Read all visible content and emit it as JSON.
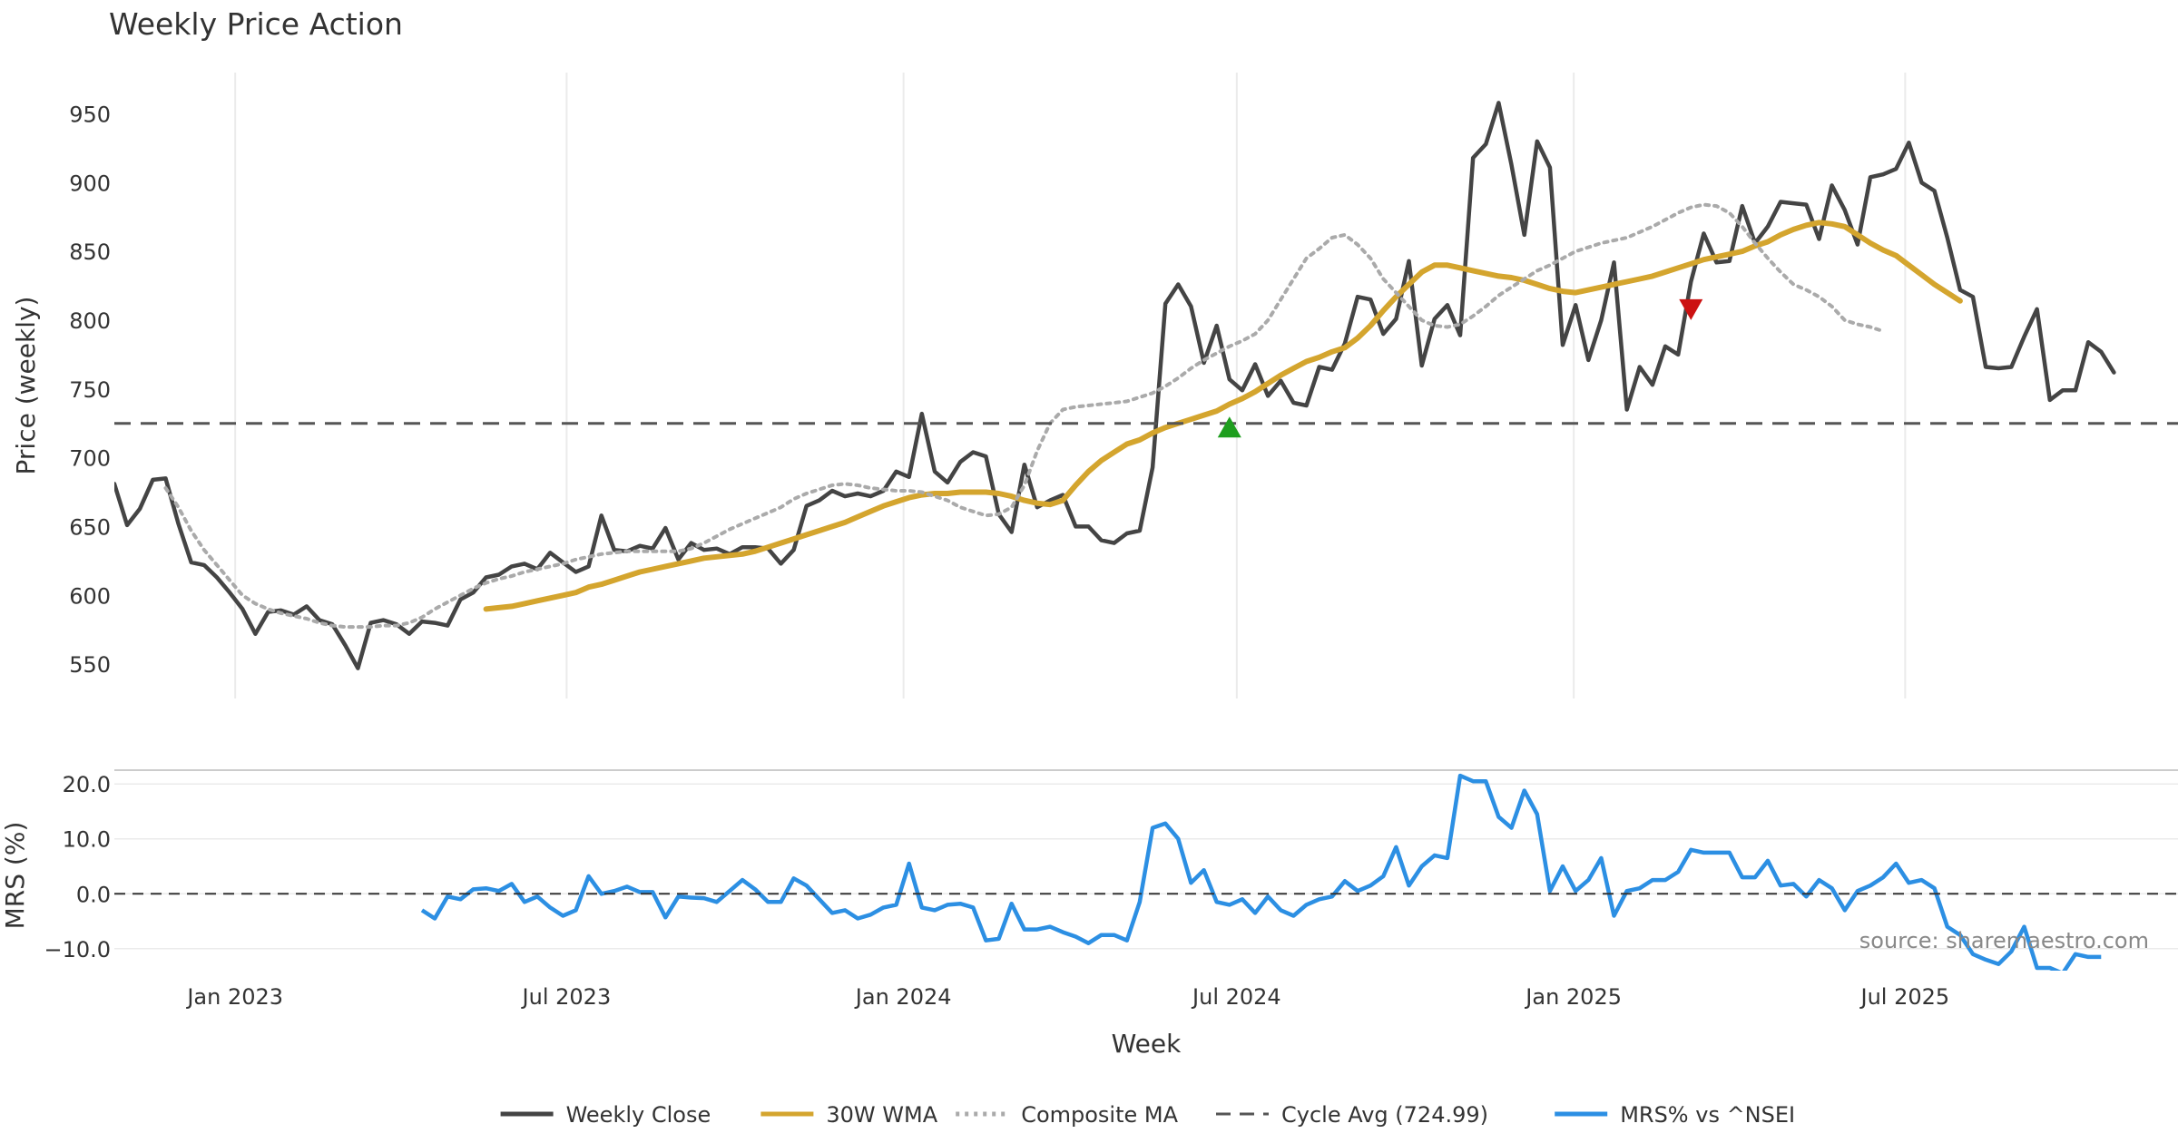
{
  "colors": {
    "close": "#444444",
    "wma": "#D4A52E",
    "composite": "#AAAAAA",
    "cycle": "#555555",
    "mrs": "#2C8FE3",
    "buy": "#1E9E1E",
    "sell": "#CC1111",
    "grid": "#EBEBEB"
  },
  "chart_data": [
    {
      "type": "line",
      "title": "Weekly Price Action",
      "xlabel": "Week",
      "ylabel": "Price (weekly)",
      "ylim": [
        525,
        980
      ],
      "yticks": [
        550,
        600,
        650,
        700,
        750,
        800,
        850,
        900,
        950
      ],
      "x_start": "2022-10-27",
      "x_end": "2025-11-27",
      "xticks": [
        {
          "date": "2023-01-01",
          "label": "Jan 2023"
        },
        {
          "date": "2023-07-01",
          "label": "Jul 2023"
        },
        {
          "date": "2024-01-01",
          "label": "Jan 2024"
        },
        {
          "date": "2024-07-01",
          "label": "Jul 2024"
        },
        {
          "date": "2025-01-01",
          "label": "Jan 2025"
        },
        {
          "date": "2025-07-01",
          "label": "Jul 2025"
        }
      ],
      "grid": true,
      "series": [
        {
          "name": "Weekly Close",
          "start": "2022-10-27",
          "step_days": 7,
          "values": [
            681,
            651,
            663,
            684,
            685,
            652,
            624,
            622,
            613,
            602,
            590,
            572,
            588,
            589,
            586,
            592,
            582,
            579,
            564,
            547,
            580,
            582,
            579,
            572,
            581,
            580,
            578,
            597,
            602,
            613,
            615,
            621,
            623,
            619,
            631,
            624,
            617,
            621,
            658,
            633,
            632,
            636,
            634,
            649,
            626,
            638,
            633,
            634,
            630,
            635,
            635,
            634,
            623,
            633,
            665,
            669,
            676,
            672,
            674,
            672,
            676,
            690,
            686,
            732,
            690,
            682,
            697,
            704,
            701,
            659,
            646,
            695,
            664,
            669,
            673,
            650,
            650,
            640,
            638,
            645,
            647,
            693,
            812,
            826,
            810,
            769,
            796,
            757,
            749,
            768,
            745,
            756,
            740,
            738,
            766,
            764,
            783,
            817,
            815,
            790,
            801,
            843,
            767,
            801,
            811,
            789,
            918,
            928,
            958,
            913,
            862,
            930,
            911,
            782,
            811,
            771,
            800,
            842,
            735,
            766,
            753,
            781,
            775,
            828,
            863,
            842,
            843,
            883,
            856,
            868,
            886,
            885,
            884,
            859,
            898,
            880,
            855,
            904,
            906,
            910,
            929,
            900,
            894,
            860,
            822,
            817,
            766,
            765,
            766,
            788,
            808,
            742,
            749,
            749,
            784,
            777,
            762
          ]
        },
        {
          "name": "30W WMA",
          "start": "2023-05-18",
          "step_days": 7,
          "values": [
            590,
            591,
            592,
            594,
            596,
            598,
            600,
            602,
            606,
            608,
            611,
            614,
            617,
            619,
            621,
            623,
            625,
            627,
            628,
            629,
            630,
            632,
            635,
            638,
            641,
            644,
            647,
            650,
            653,
            657,
            661,
            665,
            668,
            671,
            673,
            674,
            674,
            675,
            675,
            675,
            674,
            672,
            669,
            667,
            666,
            669,
            680,
            690,
            698,
            704,
            710,
            713,
            718,
            722,
            725,
            728,
            731,
            734,
            739,
            743,
            748,
            754,
            760,
            765,
            770,
            773,
            777,
            780,
            787,
            796,
            807,
            817,
            826,
            835,
            840,
            840,
            838,
            836,
            834,
            832,
            831,
            829,
            826,
            823,
            821,
            820,
            822,
            824,
            826,
            828,
            830,
            832,
            835,
            838,
            841,
            844,
            846,
            848,
            850,
            854,
            857,
            862,
            866,
            869,
            871,
            870,
            868,
            862,
            856,
            851,
            847,
            840,
            833,
            826,
            820,
            814
          ]
        },
        {
          "name": "Composite MA",
          "start": "2022-11-24",
          "step_days": 7,
          "values": [
            678,
            664,
            647,
            633,
            622,
            611,
            600,
            594,
            590,
            587,
            585,
            583,
            580,
            578,
            577,
            577,
            577,
            578,
            578,
            580,
            584,
            590,
            595,
            600,
            605,
            609,
            612,
            614,
            617,
            619,
            621,
            623,
            626,
            628,
            630,
            631,
            632,
            632,
            632,
            632,
            632,
            634,
            638,
            643,
            648,
            652,
            656,
            660,
            664,
            670,
            674,
            677,
            680,
            681,
            680,
            678,
            677,
            676,
            676,
            675,
            672,
            669,
            664,
            661,
            658,
            659,
            664,
            680,
            705,
            725,
            735,
            737,
            738,
            739,
            740,
            741,
            744,
            747,
            752,
            758,
            765,
            771,
            776,
            781,
            785,
            790,
            800,
            815,
            830,
            845,
            852,
            860,
            862,
            855,
            845,
            830,
            820,
            810,
            800,
            796,
            795,
            797,
            803,
            810,
            818,
            824,
            830,
            836,
            840,
            845,
            850,
            853,
            856,
            858,
            860,
            864,
            868,
            873,
            878,
            882,
            884,
            883,
            878,
            868,
            856,
            845,
            835,
            826,
            822,
            817,
            810,
            800,
            797,
            795,
            792
          ]
        },
        {
          "name": "Cycle Avg (724.99)",
          "value": 724.99
        }
      ],
      "markers": [
        {
          "type": "buy",
          "date": "2024-06-27",
          "value": 722
        },
        {
          "type": "sell",
          "date": "2025-03-06",
          "value": 808
        }
      ]
    },
    {
      "type": "line",
      "ylabel": "MRS (%)",
      "ylim": [
        -14,
        24
      ],
      "yticks": [
        -10,
        0,
        10,
        20
      ],
      "ytick_labels": [
        "−10.0",
        "0.0",
        "10.0",
        "20.0"
      ],
      "grid": true,
      "series": [
        {
          "name": "MRS% vs ^NSEI",
          "start": "2023-04-13",
          "step_days": 7,
          "values": [
            -3,
            -4.5,
            -0.5,
            -1,
            0.8,
            1,
            0.5,
            1.8,
            -1.5,
            -0.5,
            -2.5,
            -4,
            -3,
            3.2,
            0,
            0.5,
            1.3,
            0.3,
            0.3,
            -4.3,
            -0.5,
            -0.7,
            -0.8,
            -1.5,
            0.5,
            2.5,
            0.8,
            -1.5,
            -1.5,
            2.8,
            1.5,
            -1,
            -3.5,
            -3,
            -4.5,
            -3.8,
            -2.5,
            -2,
            5.5,
            -2.5,
            -3,
            -2,
            -1.8,
            -2.5,
            -8.5,
            -8.2,
            -1.8,
            -6.5,
            -6.5,
            -6,
            -7,
            -7.8,
            -9,
            -7.5,
            -7.5,
            -8.5,
            -1.5,
            12,
            12.8,
            10,
            2,
            4.3,
            -1.5,
            -2,
            -1,
            -3.5,
            -0.5,
            -3,
            -4,
            -2,
            -1,
            -0.5,
            2.3,
            0.5,
            1.5,
            3.2,
            8.5,
            1.5,
            5,
            7,
            6.5,
            21.5,
            20.5,
            20.5,
            14,
            12,
            18.8,
            14.5,
            0.5,
            5,
            0.5,
            2.5,
            6.5,
            -4,
            0.5,
            1,
            2.5,
            2.5,
            4,
            8,
            7.5,
            7.5,
            7.5,
            3,
            3,
            6,
            1.5,
            1.8,
            -0.5,
            2.5,
            1,
            -3,
            0.5,
            1.5,
            3,
            5.5,
            2,
            2.5,
            1,
            -6,
            -7.5,
            -11,
            -12,
            -12.8,
            -10.5,
            -6,
            -13.5,
            -13.5,
            -14.5,
            -11,
            -11.5,
            -11.5
          ]
        },
        {
          "name": "Zero",
          "value": 0
        }
      ]
    }
  ],
  "legend": [
    {
      "key": "close",
      "label": "Weekly Close",
      "style": "solid"
    },
    {
      "key": "wma",
      "label": "30W WMA",
      "style": "solid"
    },
    {
      "key": "composite",
      "label": "Composite MA",
      "style": "dotted"
    },
    {
      "key": "cycle",
      "label": "Cycle Avg (724.99)",
      "style": "dashed"
    },
    {
      "key": "mrs",
      "label": "MRS% vs ^NSEI",
      "style": "solid"
    }
  ],
  "source_text": "source: sharemaestro.com"
}
